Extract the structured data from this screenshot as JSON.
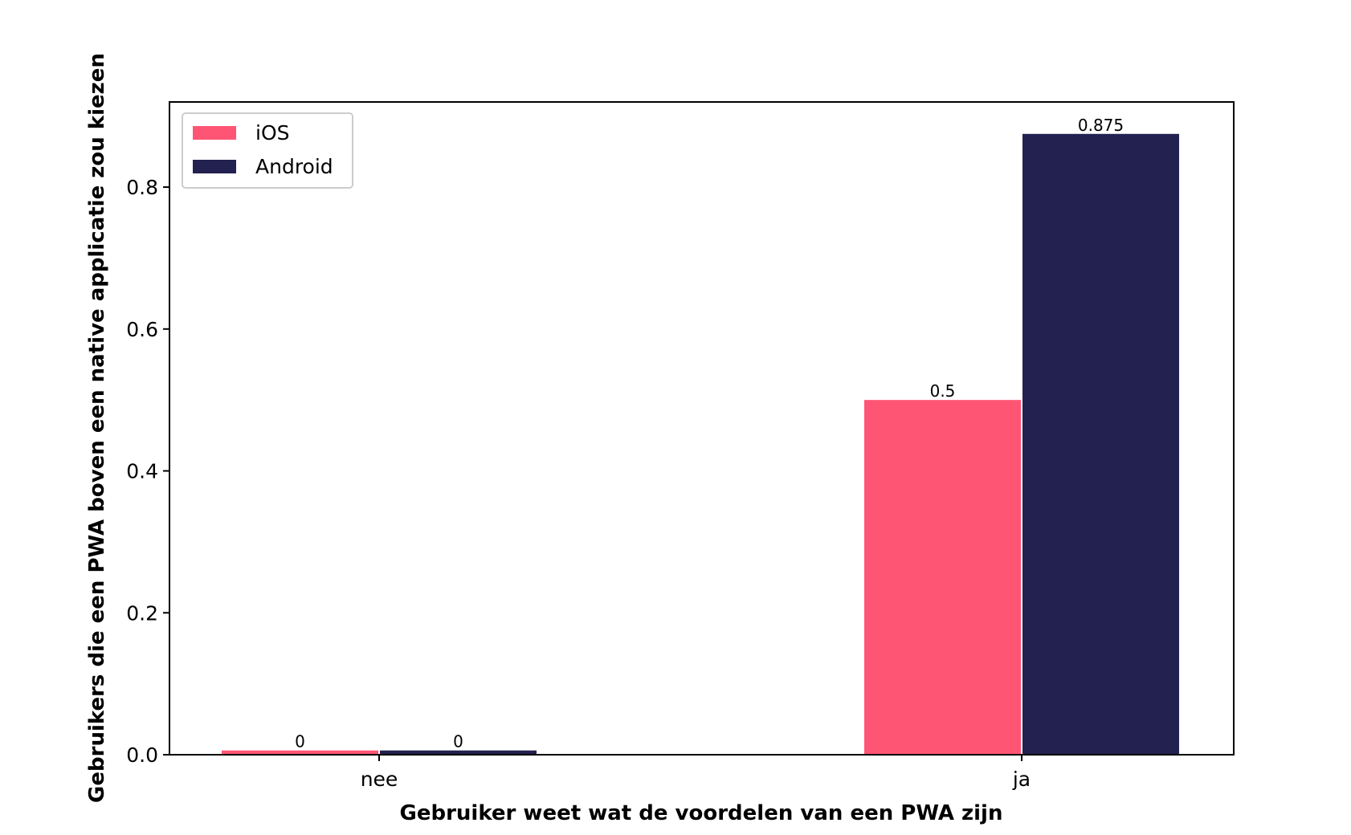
{
  "chart_data": {
    "type": "bar",
    "categories": [
      "nee",
      "ja"
    ],
    "series": [
      {
        "name": "iOS",
        "values": [
          0,
          0.5
        ],
        "labels": [
          "0",
          "0.5"
        ],
        "color": "#ff5575"
      },
      {
        "name": "Android",
        "values": [
          0,
          0.875
        ],
        "labels": [
          "0",
          "0.875"
        ],
        "color": "#232150"
      }
    ],
    "title": "",
    "xlabel": "Gebruiker weet wat de voordelen van een PWA zijn",
    "ylabel": "Gebruikers die een PWA boven een native applicatie zou kiezen",
    "ylim": [
      0,
      0.92
    ],
    "yticks": [
      0.0,
      0.2,
      0.4,
      0.6,
      0.8
    ],
    "ytick_labels": [
      "0.0",
      "0.2",
      "0.4",
      "0.6",
      "0.8"
    ],
    "min_bar_value": 0.006,
    "grid": false,
    "legend": "top-left"
  }
}
